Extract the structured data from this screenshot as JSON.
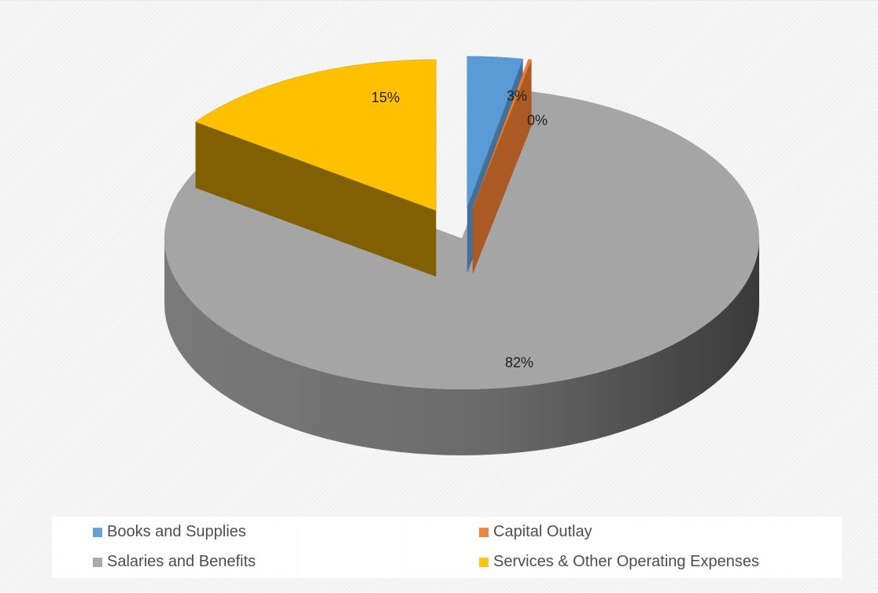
{
  "chart_data": {
    "type": "pie",
    "title": "",
    "slices": [
      {
        "name": "Books and Supplies",
        "value": 3,
        "label": "3%",
        "color": "#5b9bd5"
      },
      {
        "name": "Capital Outlay",
        "value": 0,
        "label": "0%",
        "color": "#ed7d31"
      },
      {
        "name": "Salaries and Benefits",
        "value": 82,
        "label": "82%",
        "color": "#a5a5a5"
      },
      {
        "name": "Services & Other Operating Expenses",
        "value": 15,
        "label": "15%",
        "color": "#ffc000"
      }
    ],
    "legend_position": "bottom",
    "exploded": true,
    "three_d": true
  }
}
